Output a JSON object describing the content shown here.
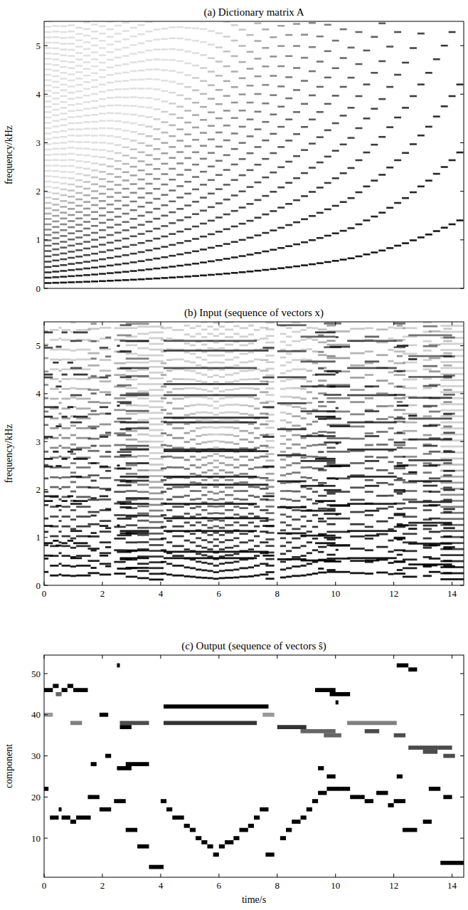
{
  "chart_data": [
    {
      "type": "heatmap",
      "title": "(a) Dictionary matrix A",
      "y_label": "frequency/kHz",
      "color": "#000000",
      "xlim": [
        0.5,
        54.5
      ],
      "ylim": [
        0,
        5.5
      ],
      "yticks": [
        0,
        1,
        2,
        3,
        4,
        5
      ],
      "tick_labels": "y",
      "values": [
        0.11,
        0.115,
        0.12,
        0.126,
        0.131,
        0.137,
        0.143,
        0.15,
        0.157,
        0.164,
        0.171,
        0.179,
        0.187,
        0.196,
        0.205,
        0.214,
        0.224,
        0.234,
        0.244,
        0.255,
        0.267,
        0.279,
        0.292,
        0.305,
        0.319,
        0.333,
        0.348,
        0.364,
        0.381,
        0.398,
        0.416,
        0.435,
        0.454,
        0.475,
        0.497,
        0.519,
        0.543,
        0.567,
        0.593,
        0.62,
        0.66,
        0.7,
        0.74,
        0.78,
        0.83,
        0.88,
        0.93,
        0.99,
        1.05,
        1.11,
        1.18,
        1.25,
        1.32,
        1.4
      ]
    },
    {
      "type": "heatmap",
      "title": "(b) Input (sequence of vectors x)",
      "y_label": "frequency/kHz",
      "color": "#000000",
      "xlim": [
        0,
        14.4
      ],
      "xticks": [
        0,
        2,
        4,
        6,
        8,
        10,
        12,
        14
      ],
      "ylim": [
        0,
        5.5
      ],
      "yticks": [
        0,
        1,
        2,
        3,
        4,
        5
      ],
      "notes": [
        [
          0,
          0.15,
          0.279
        ],
        [
          0,
          0.3,
          0.88
        ],
        [
          0.3,
          0.5,
          0.93
        ],
        [
          0.4,
          0.6,
          0.83
        ],
        [
          0.6,
          0.8,
          0.88
        ],
        [
          0.8,
          1.0,
          0.93
        ],
        [
          1.0,
          1.5,
          0.88
        ],
        [
          0,
          0.3,
          0.62
        ],
        [
          0.2,
          0.5,
          0.205
        ],
        [
          0.5,
          0.6,
          0.224
        ],
        [
          0.6,
          0.9,
          0.205
        ],
        [
          0.9,
          1.1,
          0.196
        ],
        [
          1.1,
          1.6,
          0.205
        ],
        [
          0.9,
          1.3,
          0.567
        ],
        [
          1.5,
          1.9,
          0.255
        ],
        [
          1.6,
          1.8,
          0.364
        ],
        [
          1.9,
          2.3,
          0.224
        ],
        [
          1.9,
          2.2,
          0.62
        ],
        [
          2.1,
          2.3,
          0.398
        ],
        [
          2.4,
          2.8,
          0.244
        ],
        [
          2.5,
          3.0,
          0.348
        ],
        [
          2.8,
          3.6,
          0.364
        ],
        [
          2.6,
          3.0,
          0.543
        ],
        [
          2.6,
          3.6,
          0.567
        ],
        [
          2.5,
          2.6,
          1.25
        ],
        [
          2.8,
          3.2,
          0.179
        ],
        [
          3.2,
          3.6,
          0.15
        ],
        [
          3.6,
          4.1,
          0.12
        ],
        [
          4.0,
          4.2,
          0.244
        ],
        [
          4.2,
          4.4,
          0.224
        ],
        [
          4.4,
          4.8,
          0.205
        ],
        [
          4.8,
          5.0,
          0.187
        ],
        [
          5.0,
          5.2,
          0.179
        ],
        [
          5.2,
          5.4,
          0.164
        ],
        [
          5.4,
          5.6,
          0.157
        ],
        [
          5.6,
          5.8,
          0.15
        ],
        [
          5.8,
          6.0,
          0.137
        ],
        [
          6.0,
          6.2,
          0.15
        ],
        [
          6.2,
          6.5,
          0.157
        ],
        [
          6.5,
          6.7,
          0.164
        ],
        [
          6.7,
          7.0,
          0.179
        ],
        [
          7.0,
          7.2,
          0.187
        ],
        [
          7.2,
          7.4,
          0.205
        ],
        [
          7.4,
          7.7,
          0.224
        ],
        [
          7.6,
          7.9,
          0.137
        ],
        [
          8.1,
          8.3,
          0.164
        ],
        [
          8.3,
          8.5,
          0.179
        ],
        [
          8.5,
          8.8,
          0.196
        ],
        [
          8.8,
          9.0,
          0.205
        ],
        [
          9.0,
          9.2,
          0.224
        ],
        [
          9.2,
          9.4,
          0.244
        ],
        [
          9.4,
          9.7,
          0.267
        ],
        [
          9.7,
          10.2,
          0.279
        ],
        [
          4.1,
          7.7,
          0.7
        ],
        [
          4.1,
          7.3,
          0.567
        ],
        [
          7.5,
          7.9,
          0.62
        ],
        [
          9.3,
          10.0,
          0.88
        ],
        [
          9.8,
          10.5,
          0.83
        ],
        [
          10.0,
          10.1,
          0.74
        ],
        [
          8.0,
          9.0,
          0.543
        ],
        [
          8.8,
          10.0,
          0.519
        ],
        [
          9.6,
          10.2,
          0.497
        ],
        [
          9.4,
          9.6,
          0.348
        ],
        [
          9.7,
          10.0,
          0.319
        ],
        [
          10.5,
          11.0,
          0.255
        ],
        [
          10.2,
          10.5,
          0.279
        ],
        [
          11.0,
          11.3,
          0.244
        ],
        [
          11.4,
          11.8,
          0.267
        ],
        [
          11.8,
          12.0,
          0.234
        ],
        [
          12.0,
          12.4,
          0.244
        ],
        [
          12.1,
          12.3,
          0.319
        ],
        [
          10.4,
          12.1,
          0.567
        ],
        [
          11.0,
          11.5,
          0.519
        ],
        [
          12.0,
          12.4,
          0.497
        ],
        [
          12.5,
          13.5,
          0.435
        ],
        [
          13.0,
          13.5,
          0.416
        ],
        [
          13.5,
          14.0,
          0.435
        ],
        [
          13.7,
          14.1,
          0.398
        ],
        [
          12.3,
          12.8,
          0.179
        ],
        [
          13.0,
          13.3,
          0.196
        ],
        [
          13.2,
          13.6,
          0.279
        ],
        [
          13.7,
          14.0,
          0.255
        ],
        [
          12.1,
          12.5,
          1.25
        ],
        [
          12.5,
          12.8,
          1.18
        ],
        [
          13.6,
          14.4,
          0.126
        ]
      ]
    },
    {
      "type": "heatmap",
      "title": "(c) Output (sequence of vectors ŝ)",
      "x_label": "time/s",
      "y_label": "component",
      "color": "#000000",
      "xlim": [
        0,
        14.4
      ],
      "xticks": [
        0,
        2,
        4,
        6,
        8,
        10,
        12,
        14
      ],
      "ylim": [
        0.5,
        54.5
      ],
      "yticks": [
        10,
        20,
        30,
        40,
        50
      ],
      "events": [
        [
          22,
          0,
          0.15,
          1
        ],
        [
          46,
          0,
          0.3,
          1
        ],
        [
          47,
          0.3,
          0.5,
          1
        ],
        [
          45,
          0.4,
          0.6,
          0.6
        ],
        [
          46,
          0.6,
          0.8,
          1
        ],
        [
          47,
          0.8,
          1.0,
          1
        ],
        [
          46,
          1.0,
          1.5,
          1
        ],
        [
          40,
          0,
          0.3,
          0.4
        ],
        [
          15,
          0.2,
          0.5,
          1
        ],
        [
          17,
          0.5,
          0.6,
          1
        ],
        [
          15,
          0.6,
          0.9,
          1
        ],
        [
          14,
          0.9,
          1.1,
          1
        ],
        [
          15,
          1.1,
          1.6,
          1
        ],
        [
          38,
          0.9,
          1.3,
          0.5
        ],
        [
          20,
          1.5,
          1.9,
          1
        ],
        [
          28,
          1.6,
          1.8,
          1
        ],
        [
          17,
          1.9,
          2.3,
          1
        ],
        [
          40,
          1.9,
          2.2,
          1
        ],
        [
          30,
          2.1,
          2.3,
          1
        ],
        [
          19,
          2.4,
          2.8,
          1
        ],
        [
          27,
          2.5,
          3.0,
          1
        ],
        [
          28,
          2.8,
          3.6,
          1
        ],
        [
          37,
          2.6,
          3.0,
          1
        ],
        [
          38,
          2.6,
          3.6,
          0.7
        ],
        [
          52,
          2.5,
          2.6,
          1
        ],
        [
          12,
          2.8,
          3.2,
          1
        ],
        [
          8,
          3.2,
          3.6,
          1
        ],
        [
          3,
          3.6,
          4.1,
          1
        ],
        [
          19,
          4.0,
          4.2,
          1
        ],
        [
          17,
          4.2,
          4.4,
          1
        ],
        [
          15,
          4.4,
          4.8,
          1
        ],
        [
          13,
          4.8,
          5.0,
          1
        ],
        [
          12,
          5.0,
          5.2,
          1
        ],
        [
          10,
          5.2,
          5.4,
          1
        ],
        [
          9,
          5.4,
          5.6,
          1
        ],
        [
          8,
          5.6,
          5.8,
          1
        ],
        [
          6,
          5.8,
          6.0,
          1
        ],
        [
          8,
          6.0,
          6.2,
          1
        ],
        [
          9,
          6.2,
          6.5,
          1
        ],
        [
          10,
          6.5,
          6.7,
          1
        ],
        [
          12,
          6.7,
          7.0,
          1
        ],
        [
          13,
          7.0,
          7.2,
          1
        ],
        [
          15,
          7.2,
          7.4,
          1
        ],
        [
          17,
          7.4,
          7.7,
          1
        ],
        [
          6,
          7.6,
          7.9,
          1
        ],
        [
          10,
          8.1,
          8.3,
          1
        ],
        [
          12,
          8.3,
          8.5,
          1
        ],
        [
          14,
          8.5,
          8.8,
          1
        ],
        [
          15,
          8.8,
          9.0,
          1
        ],
        [
          17,
          9.0,
          9.2,
          1
        ],
        [
          19,
          9.2,
          9.4,
          1
        ],
        [
          21,
          9.4,
          9.7,
          1
        ],
        [
          22,
          9.7,
          10.2,
          1
        ],
        [
          42,
          4.1,
          7.7,
          1
        ],
        [
          38,
          4.1,
          7.3,
          0.8
        ],
        [
          40,
          7.5,
          7.9,
          0.4
        ],
        [
          46,
          9.3,
          10.0,
          1
        ],
        [
          45,
          9.8,
          10.5,
          1
        ],
        [
          43,
          10.0,
          10.1,
          1
        ],
        [
          37,
          8.0,
          9.0,
          0.8
        ],
        [
          36,
          8.8,
          10.0,
          0.6
        ],
        [
          35,
          9.6,
          10.2,
          0.6
        ],
        [
          27,
          9.4,
          9.6,
          1
        ],
        [
          25,
          9.7,
          10.0,
          1
        ],
        [
          20,
          10.5,
          11.0,
          1
        ],
        [
          22,
          10.2,
          10.5,
          1
        ],
        [
          19,
          11.0,
          11.3,
          1
        ],
        [
          21,
          11.4,
          11.8,
          1
        ],
        [
          18,
          11.8,
          12.0,
          1
        ],
        [
          19,
          12.0,
          12.4,
          1
        ],
        [
          25,
          12.1,
          12.3,
          1
        ],
        [
          38,
          10.4,
          12.1,
          0.5
        ],
        [
          36,
          11.0,
          11.5,
          0.7
        ],
        [
          35,
          12.0,
          12.4,
          0.7
        ],
        [
          32,
          12.5,
          13.5,
          0.7
        ],
        [
          31,
          13.0,
          13.5,
          0.7
        ],
        [
          32,
          13.5,
          14.0,
          0.7
        ],
        [
          30,
          13.7,
          14.1,
          0.7
        ],
        [
          12,
          12.3,
          12.8,
          1
        ],
        [
          14,
          13.0,
          13.3,
          1
        ],
        [
          22,
          13.2,
          13.6,
          1
        ],
        [
          20,
          13.7,
          14.0,
          1
        ],
        [
          52,
          12.1,
          12.5,
          1
        ],
        [
          51,
          12.5,
          12.8,
          1
        ],
        [
          4,
          13.6,
          14.4,
          1
        ]
      ]
    }
  ]
}
